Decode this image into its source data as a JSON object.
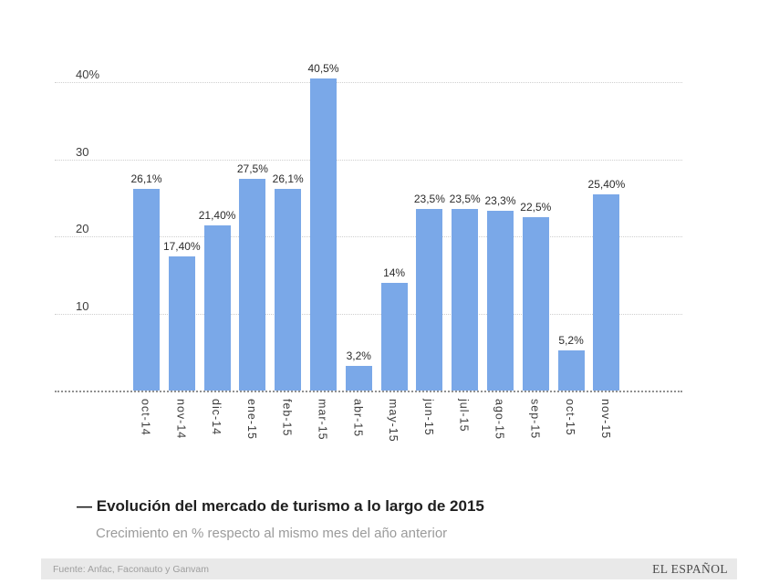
{
  "chart_data": {
    "type": "bar",
    "title": "Evolución del mercado de turismo a lo largo de 2015",
    "title_prefix": "—",
    "subtitle": "Crecimiento en % respecto al mismo mes del año anterior",
    "categories": [
      "oct-14",
      "nov-14",
      "dic-14",
      "ene-15",
      "feb-15",
      "mar-15",
      "abr-15",
      "may-15",
      "jun-15",
      "jul-15",
      "ago-15",
      "sep-15",
      "oct-15",
      "nov-15"
    ],
    "values": [
      26.1,
      17.4,
      21.4,
      27.5,
      26.1,
      40.5,
      3.2,
      14,
      23.5,
      23.5,
      23.3,
      22.5,
      5.2,
      25.4
    ],
    "value_labels": [
      "26,1%",
      "17,40%",
      "21,40%",
      "27,5%",
      "26,1%",
      "40,5%",
      "3,2%",
      "14%",
      "23,5%",
      "23,5%",
      "23,3%",
      "22,5%",
      "5,2%",
      "25,40%"
    ],
    "xlabel": "",
    "ylabel": "",
    "y_axis": {
      "max": 40,
      "min": 0,
      "ticks": [
        {
          "value": 40,
          "label": "40%"
        },
        {
          "value": 30,
          "label": "30"
        },
        {
          "value": 20,
          "label": "20"
        },
        {
          "value": 10,
          "label": "10"
        }
      ]
    },
    "grid": "horizontal-dotted",
    "legend": "none",
    "bar_color": "#7aa8e8"
  },
  "footer": {
    "source": "Fuente: Anfac, Faconauto y Ganvam",
    "brand": "EL ESPAÑOL"
  }
}
